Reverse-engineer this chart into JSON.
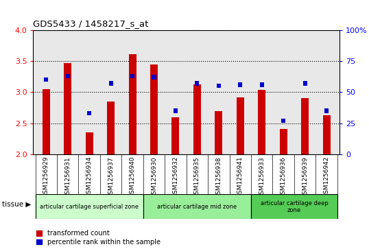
{
  "title": "GDS5433 / 1458217_s_at",
  "samples": [
    "GSM1256929",
    "GSM1256931",
    "GSM1256934",
    "GSM1256937",
    "GSM1256940",
    "GSM1256930",
    "GSM1256932",
    "GSM1256935",
    "GSM1256938",
    "GSM1256941",
    "GSM1256933",
    "GSM1256936",
    "GSM1256939",
    "GSM1256942"
  ],
  "transformed_count": [
    3.05,
    3.47,
    2.35,
    2.85,
    3.61,
    3.44,
    2.6,
    3.12,
    2.7,
    2.92,
    3.04,
    2.41,
    2.9,
    2.63
  ],
  "percentile_rank": [
    60,
    63,
    33,
    57,
    63,
    62,
    35,
    57,
    55,
    56,
    56,
    27,
    57,
    35
  ],
  "ylim_left": [
    2.0,
    4.0
  ],
  "ylim_right": [
    0,
    100
  ],
  "yticks_left": [
    2.0,
    2.5,
    3.0,
    3.5,
    4.0
  ],
  "yticks_right": [
    0,
    25,
    50,
    75,
    100
  ],
  "bar_color_red": "#cc0000",
  "bar_color_blue": "#0000cc",
  "groups": [
    {
      "label": "articular cartilage superficial zone",
      "start": 0,
      "end": 4,
      "color": "#ccffcc"
    },
    {
      "label": "articular cartilage mid zone",
      "start": 5,
      "end": 9,
      "color": "#99ee99"
    },
    {
      "label": "articular cartilage deep\nzone",
      "start": 10,
      "end": 13,
      "color": "#55cc55"
    }
  ],
  "tissue_label": "tissue",
  "legend_red": "transformed count",
  "legend_blue": "percentile rank within the sample",
  "bar_width": 0.35,
  "bg_color": "#d8d8d8",
  "plot_bg": "#e8e8e8"
}
